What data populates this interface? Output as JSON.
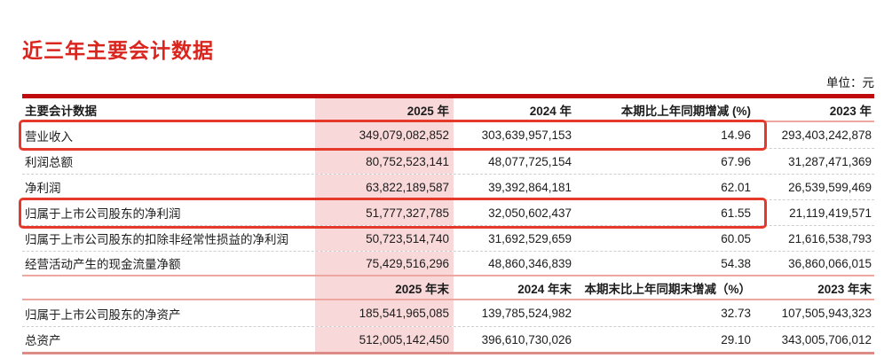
{
  "page": {
    "title": "近三年主要会计数据",
    "unit_label": "单位：元"
  },
  "colors": {
    "title_red": "#d9251d",
    "top_bar_red": "#bf0b0d",
    "highlight_border_red": "#e5392c",
    "column_2025_pink": "#f8d8d8",
    "separator_pink": "#eda6a0",
    "bottom_bar_pink": "#dd8b86"
  },
  "table": {
    "header_top": {
      "label": "主要会计数据",
      "col_2025": "2025 年",
      "col_2024": "2024 年",
      "col_change": "本期比上年同期增减 (%)",
      "col_2023": "2023 年"
    },
    "rows_period": [
      {
        "label": "营业收入",
        "v2025": "349,079,082,852",
        "v2024": "303,639,957,153",
        "change": "14.96",
        "v2023": "293,403,242,878",
        "highlighted": true
      },
      {
        "label": "利润总额",
        "v2025": "80,752,523,141",
        "v2024": "48,077,725,154",
        "change": "67.96",
        "v2023": "31,287,471,369",
        "highlighted": false
      },
      {
        "label": "净利润",
        "v2025": "63,822,189,587",
        "v2024": "39,392,864,181",
        "change": "62.01",
        "v2023": "26,539,599,469",
        "highlighted": false
      },
      {
        "label": "归属于上市公司股东的净利润",
        "v2025": "51,777,327,785",
        "v2024": "32,050,602,437",
        "change": "61.55",
        "v2023": "21,119,419,571",
        "highlighted": true
      },
      {
        "label": "归属于上市公司股东的扣除非经常性损益的净利润",
        "v2025": "50,723,514,740",
        "v2024": "31,692,529,659",
        "change": "60.05",
        "v2023": "21,616,538,793",
        "highlighted": false
      },
      {
        "label": "经营活动产生的现金流量净额",
        "v2025": "75,429,516,296",
        "v2024": "48,860,346,839",
        "change": "54.38",
        "v2023": "36,860,066,015",
        "highlighted": false
      }
    ],
    "header_end": {
      "label": "",
      "col_2025": "2025 年末",
      "col_2024": "2024 年末",
      "col_change": "本期末比上年同期末增减（%）",
      "col_2023": "2023 年末"
    },
    "rows_end": [
      {
        "label": "归属于上市公司股东的净资产",
        "v2025": "185,541,965,085",
        "v2024": "139,785,524,982",
        "change": "32.73",
        "v2023": "107,505,943,323",
        "highlighted": false
      },
      {
        "label": "总资产",
        "v2025": "512,005,142,450",
        "v2024": "396,610,730,026",
        "change": "29.10",
        "v2023": "343,005,706,012",
        "highlighted": false
      }
    ]
  }
}
